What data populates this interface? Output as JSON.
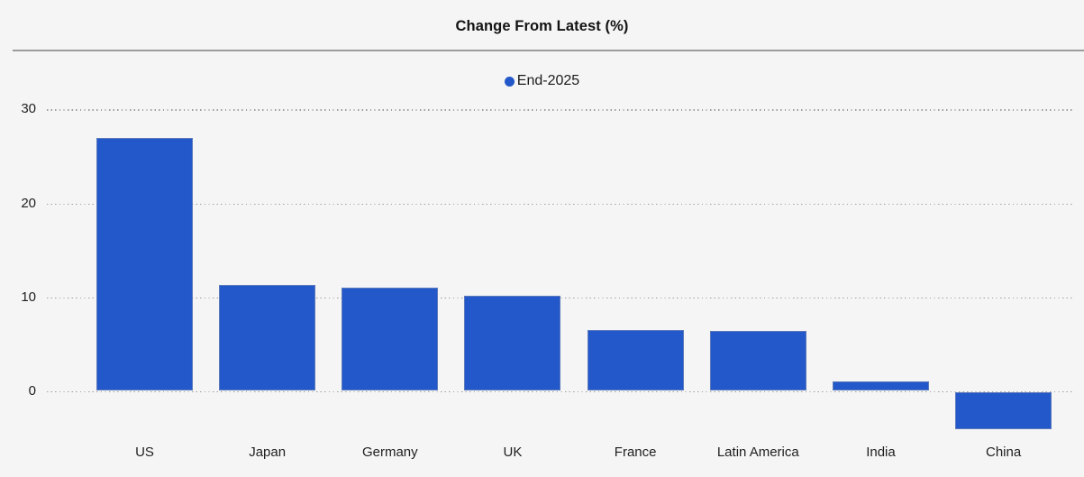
{
  "chart_data": {
    "type": "bar",
    "title": "Change From Latest (%)",
    "categories": [
      "US",
      "Japan",
      "Germany",
      "UK",
      "France",
      "Latin America",
      "India",
      "China"
    ],
    "series": [
      {
        "name": "End-2025",
        "values": [
          26.9,
          11.2,
          10.9,
          10.1,
          6.4,
          6.3,
          1.0,
          -3.9
        ]
      }
    ],
    "xlabel": "",
    "ylabel": "",
    "yticks": [
      0,
      10,
      20,
      30
    ],
    "ylim": [
      -6,
      32
    ],
    "grid": "horizontal-dotted",
    "legend_position": "top-center",
    "colors": {
      "bar_fill": "#2358CA",
      "background": "#f5f5f5",
      "gridline": "#9e9e9e",
      "divider": "#9d9d9d",
      "text": "#1b1b1b"
    }
  }
}
